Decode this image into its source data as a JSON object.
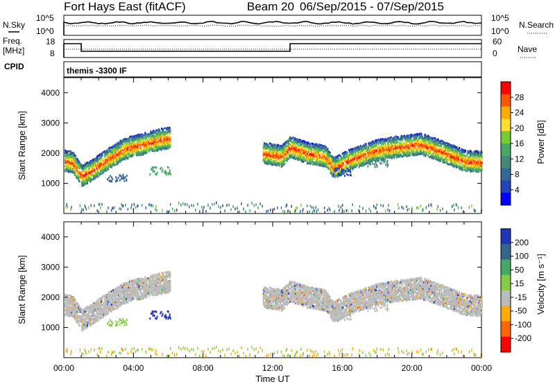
{
  "header": {
    "title": "Fort Hays East (fitACF)",
    "beam_label": "Beam 20",
    "date_range": "06/Sep/2015 - 07/Sep/2015"
  },
  "panels": {
    "nsky_label": "N.Sky",
    "nsearch_label": "N.Search",
    "freq_label_1": "Freq.",
    "freq_label_2": "[MHz]",
    "nave_label": "Nave",
    "cpid_label": "CPID",
    "cpid_value": "themis -3300 IF",
    "nsky_ticks_left": [
      "10^5",
      "10^0"
    ],
    "nsky_ticks_right": [
      "10^5",
      "10^0"
    ],
    "freq_ticks": [
      "18",
      "8"
    ],
    "nave_ticks": [
      "60",
      "0"
    ]
  },
  "colorbars": {
    "power": {
      "label": "Power [dB]",
      "ticks": [
        "28",
        "24",
        "20",
        "16",
        "12",
        "8",
        "4"
      ],
      "colors": [
        "#ff0000",
        "#ff5500",
        "#ffaa00",
        "#ffdd33",
        "#77cc33",
        "#44aa66",
        "#448877",
        "#336699",
        "#2244bb",
        "#0000ff"
      ]
    },
    "velocity": {
      "label": "Velocity [m s⁻¹]",
      "ticks": [
        "200",
        "100",
        "50",
        "15",
        "-15",
        "-50",
        "-100",
        "-200"
      ],
      "colors": [
        "#2233bb",
        "#336688",
        "#44aa66",
        "#88cc44",
        "#bbbbbb",
        "#ffaa00",
        "#ff6600",
        "#ff0000"
      ]
    }
  },
  "chart_data": [
    {
      "type": "heatmap",
      "name": "power",
      "ylabel": "Slant Range [km]",
      "xlabel": "Time UT",
      "ylim": [
        0,
        4500
      ],
      "xlim": [
        0,
        24
      ],
      "yticks": [
        1000,
        2000,
        3000,
        4000
      ],
      "xticks": [
        "00:00",
        "04:00",
        "08:00",
        "12:00",
        "16:00",
        "20:00",
        "00:00"
      ],
      "backscatter_band": [
        {
          "t": 0.0,
          "r": 1750
        },
        {
          "t": 0.5,
          "r": 1700
        },
        {
          "t": 1.0,
          "r": 1250
        },
        {
          "t": 1.5,
          "r": 1400
        },
        {
          "t": 2.5,
          "r": 1800
        },
        {
          "t": 3.5,
          "r": 2150
        },
        {
          "t": 4.5,
          "r": 2300
        },
        {
          "t": 5.5,
          "r": 2450
        },
        {
          "t": 6.0,
          "r": 2500
        },
        {
          "t": 11.5,
          "r": 2000
        },
        {
          "t": 12.5,
          "r": 1900
        },
        {
          "t": 13.0,
          "r": 2200
        },
        {
          "t": 14.0,
          "r": 2000
        },
        {
          "t": 15.0,
          "r": 1900
        },
        {
          "t": 15.5,
          "r": 1500
        },
        {
          "t": 16.5,
          "r": 1800
        },
        {
          "t": 18.0,
          "r": 2100
        },
        {
          "t": 19.0,
          "r": 2200
        },
        {
          "t": 20.5,
          "r": 2300
        },
        {
          "t": 21.5,
          "r": 2100
        },
        {
          "t": 23.0,
          "r": 1750
        },
        {
          "t": 24.0,
          "r": 1700
        }
      ]
    },
    {
      "type": "heatmap",
      "name": "velocity",
      "ylabel": "Slant Range [km]",
      "xlabel": "Time UT",
      "ylim": [
        0,
        4500
      ],
      "xlim": [
        0,
        24
      ],
      "yticks": [
        1000,
        2000,
        3000,
        4000
      ],
      "xticks": [
        "00:00",
        "04:00",
        "08:00",
        "12:00",
        "16:00",
        "20:00",
        "00:00"
      ]
    }
  ]
}
